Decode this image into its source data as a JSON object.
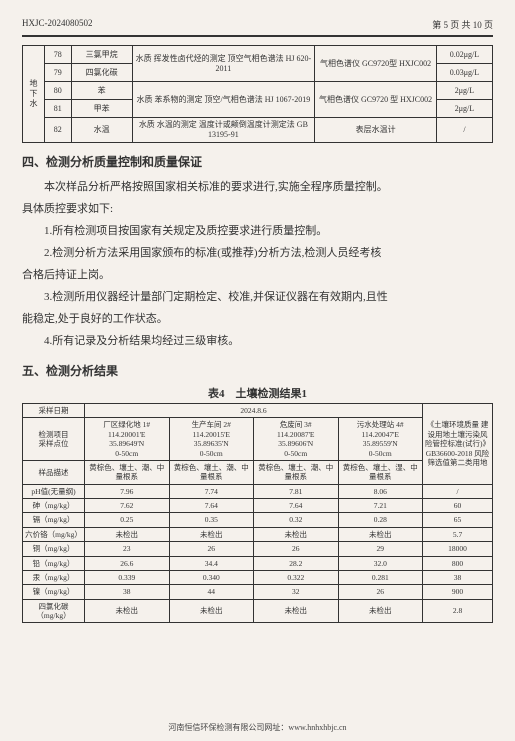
{
  "header": {
    "doc": "HXJC-2024080502",
    "page": "第 5 页 共 10 页"
  },
  "t1": {
    "rowlabel": "地下水",
    "rows": [
      {
        "n": "78",
        "name": "三氯甲烷",
        "method": "水质 挥发性卤代烃的测定 顶空气相色谱法 HJ 620-2011",
        "inst": "气相色谱仪 GC9720型 HXJC002",
        "lim": "0.02μg/L"
      },
      {
        "n": "79",
        "name": "四氯化碳",
        "method": "",
        "inst": "",
        "lim": "0.03μg/L"
      },
      {
        "n": "80",
        "name": "苯",
        "method": "水质 苯系物的测定 顶空/气相色谱法 HJ 1067-2019",
        "inst": "气相色谱仪 GC9720 型 HXJC002",
        "lim": "2μg/L"
      },
      {
        "n": "81",
        "name": "甲苯",
        "method": "",
        "inst": "",
        "lim": "2μg/L"
      },
      {
        "n": "82",
        "name": "水温",
        "method": "水质 水温的测定 温度计或颠倒温度计测定法 GB 13195-91",
        "inst": "表层水温计",
        "lim": "/"
      }
    ]
  },
  "s4": {
    "title": "四、检测分析质量控制和质量保证",
    "p1": "本次样品分析严格按照国家相关标准的要求进行,实施全程序质量控制。",
    "p2": "具体质控要求如下:",
    "p3": "1.所有检测项目按国家有关规定及质控要求进行质量控制。",
    "p4": "2.检测分析方法采用国家颁布的标准(或推荐)分析方法,检测人员经考核",
    "p5": "合格后持证上岗。",
    "p6": "3.检测所用仪器经计量部门定期检定、校准,并保证仪器在有效期内,且性",
    "p7": "能稳定,处于良好的工作状态。",
    "p8": "4.所有记录及分析结果均经过三级审核。"
  },
  "s5": {
    "title": "五、检测分析结果",
    "cap": "表4　土壤检测结果1"
  },
  "t2": {
    "date_lbl": "采样日期",
    "date": "2024.8.6",
    "std_lbl": "《土壤环境质量 建设用地土壤污染风险管控标准(试行)》GB36600-2018 风险筛选值第二类用地",
    "loc_lbl": "检测项目\n采样点位",
    "locs": [
      "厂区绿化地 1#\n114.20001'E\n35.89649'N\n0-50cm",
      "生产车间 2#\n114.20015'E\n35.89635'N\n0-50cm",
      "危废间 3#\n114.20087'E\n35.89606'N\n0-50cm",
      "污水处理站 4#\n114.20047'E\n35.89559'N\n0-50cm"
    ],
    "char_lbl": "样品描述",
    "chars": [
      "黄棕色、壤土、潮、中量根系",
      "黄棕色、壤土、潮、中量根系",
      "黄棕色、壤土、潮、中量根系",
      "黄棕色、壤土、湿、中量根系"
    ],
    "rows": [
      {
        "p": "pH值(无量纲)",
        "v": [
          "7.96",
          "7.74",
          "7.81",
          "8.06"
        ],
        "s": "/"
      },
      {
        "p": "砷（mg/kg）",
        "v": [
          "7.62",
          "7.64",
          "7.64",
          "7.21"
        ],
        "s": "60"
      },
      {
        "p": "镉（mg/kg）",
        "v": [
          "0.25",
          "0.35",
          "0.32",
          "0.28"
        ],
        "s": "65"
      },
      {
        "p": "六价铬（mg/kg）",
        "v": [
          "未检出",
          "未检出",
          "未检出",
          "未检出"
        ],
        "s": "5.7"
      },
      {
        "p": "铜（mg/kg）",
        "v": [
          "23",
          "26",
          "26",
          "29"
        ],
        "s": "18000"
      },
      {
        "p": "铅（mg/kg）",
        "v": [
          "26.6",
          "34.4",
          "28.2",
          "32.0"
        ],
        "s": "800"
      },
      {
        "p": "汞（mg/kg）",
        "v": [
          "0.339",
          "0.340",
          "0.322",
          "0.281"
        ],
        "s": "38"
      },
      {
        "p": "镍（mg/kg）",
        "v": [
          "38",
          "44",
          "32",
          "26"
        ],
        "s": "900"
      },
      {
        "p": "四氯化碳（mg/kg）",
        "v": [
          "未检出",
          "未检出",
          "未检出",
          "未检出"
        ],
        "s": "2.8"
      }
    ]
  },
  "footer": "河南恒信环保检测有限公司网址：www.hnhxhbjc.cn"
}
